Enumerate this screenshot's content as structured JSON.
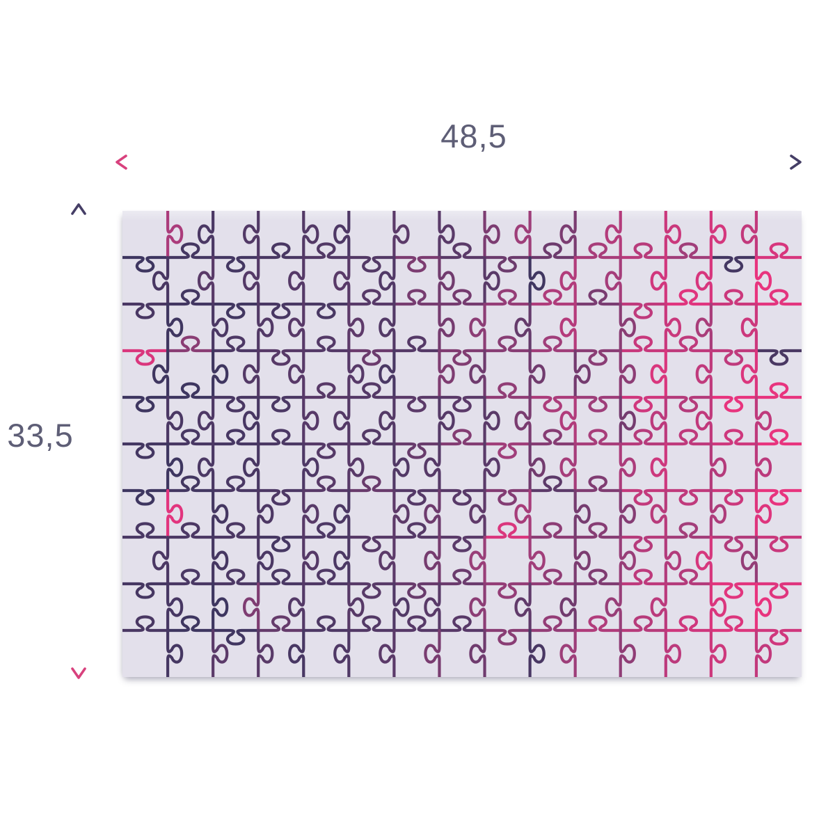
{
  "diagram": {
    "width_label": "48,5",
    "height_label": "33,5"
  },
  "label_color": "#5e5e76",
  "arrows": {
    "horizontal": {
      "direction": "left-pink-to-right-navy",
      "stops": [
        {
          "at": 0,
          "color": "#d8417d"
        },
        {
          "at": 0.35,
          "color": "#9a4579"
        },
        {
          "at": 0.62,
          "color": "#5c4a6d"
        },
        {
          "at": 1,
          "color": "#453e66"
        }
      ]
    },
    "vertical": {
      "direction": "top-navy-to-bottom-pink",
      "stops": [
        {
          "at": 0,
          "color": "#453e66"
        },
        {
          "at": 0.45,
          "color": "#4c4268"
        },
        {
          "at": 0.75,
          "color": "#91447a"
        },
        {
          "at": 1,
          "color": "#d8417d"
        }
      ]
    }
  },
  "puzzle": {
    "rows": 10,
    "cols": 15,
    "background": "#e3e0eb",
    "line_width": 4.2,
    "gradient_stops": [
      {
        "at": 0,
        "color": "#3e3660"
      },
      {
        "at": 0.45,
        "color": "#5c3a69"
      },
      {
        "at": 0.7,
        "color": "#a03e7a"
      },
      {
        "at": 1,
        "color": "#e8347e"
      }
    ],
    "noise": 0.28,
    "outlier_chance": 0.07,
    "seed": 7
  }
}
